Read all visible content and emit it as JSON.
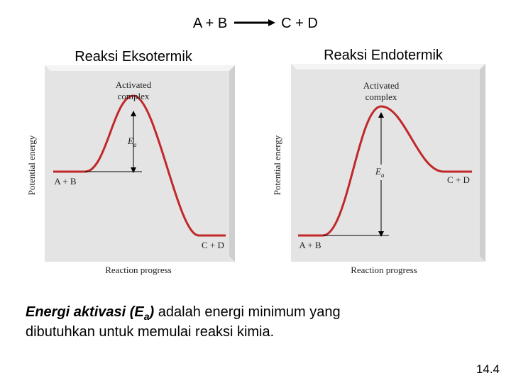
{
  "header": {
    "reactants": "A + B",
    "products": "C + D"
  },
  "panels": [
    {
      "title": "Reaksi Eksotermik",
      "peak_label": [
        "Activated",
        "complex"
      ],
      "ea_label": "E",
      "ea_subscript": "a",
      "y_axis_label": "Potential energy",
      "x_axis_label": "Reaction progress",
      "reactants": "A + B",
      "products": "C + D"
    },
    {
      "title": "Reaksi Endotermik",
      "peak_label": [
        "Activated",
        "complex"
      ],
      "ea_label": "E",
      "ea_subscript": "a",
      "y_axis_label": "Potential energy",
      "x_axis_label": "Reaction progress",
      "reactants": "A + B",
      "products": "C + D"
    }
  ],
  "caption": {
    "emphasis": "Energi aktivasi (E",
    "emphasis_subscript": "a",
    "emphasis_end": ")",
    "lines": [
      " adalah energi minimum yang",
      "dibutuhkan untuk memulai reaksi kimia."
    ]
  },
  "page_number": "14.4"
}
